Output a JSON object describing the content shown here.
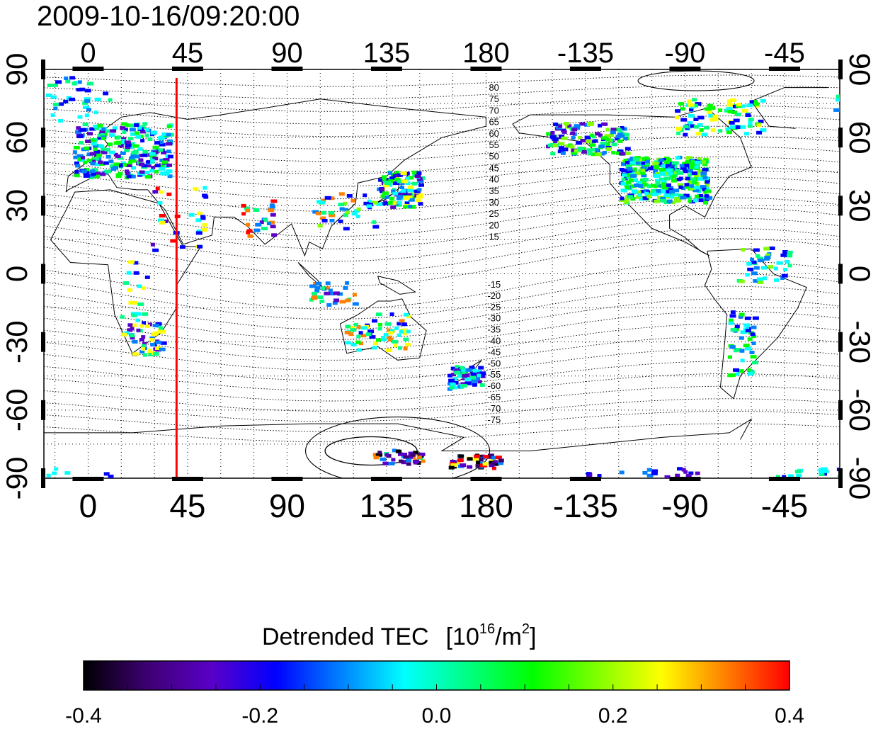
{
  "title": "2009-10-16/09:20:00",
  "map": {
    "lon_ticks": [
      0,
      45,
      90,
      135,
      180,
      -135,
      -90,
      -45
    ],
    "lat_ticks": [
      90,
      60,
      30,
      0,
      -30,
      -60,
      -90
    ],
    "lon_range": [
      -20,
      340
    ],
    "lat_range": [
      -90,
      90
    ],
    "meridian_line_lon": 40,
    "meridian_line_color": "#ff0000",
    "magnetic_latitude_labels_north": [
      "80",
      "75",
      "70",
      "65",
      "60",
      "55",
      "50",
      "45",
      "40",
      "35",
      "30",
      "25",
      "20",
      "15"
    ],
    "magnetic_latitude_labels_south": [
      "-15",
      "-20",
      "-25",
      "-30",
      "-35",
      "-40",
      "-45",
      "-50",
      "-55",
      "-60",
      "-65",
      "-70",
      "-75"
    ],
    "grid": "dotted"
  },
  "colorbar": {
    "label": "Detrended TEC",
    "unit_base": "[10",
    "unit_exp": "16",
    "unit_mid": "/m",
    "unit_exp2": "2",
    "unit_end": "]",
    "ticks": [
      "-0.4",
      "-0.2",
      "0.0",
      "0.2",
      "0.4"
    ],
    "range": [
      -0.4,
      0.4
    ],
    "colors": [
      "#000000",
      "#3d0073",
      "#5a00c8",
      "#0000ff",
      "#0080ff",
      "#00ffff",
      "#00ff80",
      "#00ff00",
      "#80ff00",
      "#ffff00",
      "#ff8000",
      "#ff0000"
    ]
  }
}
